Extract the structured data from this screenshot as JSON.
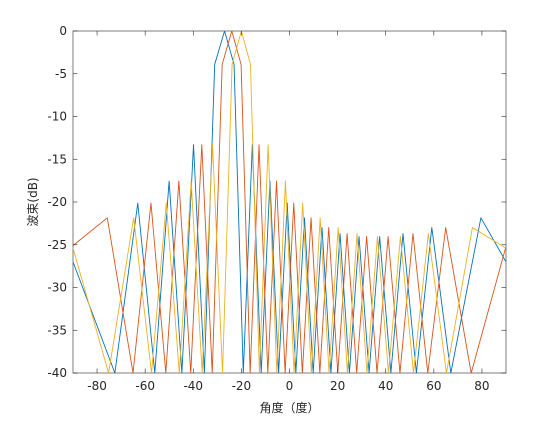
{
  "chart_data": {
    "type": "line",
    "xlabel": "角度（度）",
    "ylabel": "波束(dB)",
    "xlim": [
      -90,
      90
    ],
    "xticks": [
      -80,
      -60,
      -40,
      -20,
      0,
      20,
      40,
      60,
      80
    ],
    "ylim": [
      -40,
      0
    ],
    "yticks": [
      0,
      -5,
      -10,
      -15,
      -20,
      -25,
      -30,
      -35,
      -40
    ],
    "grid": false,
    "series": [
      {
        "color": "#0072BD",
        "x": [
          -90,
          -72.6,
          -63.07,
          -56,
          -50.04,
          -44.74,
          -39.9,
          -35.38,
          -31.1,
          -27,
          -23.05,
          -19.21,
          -15.46,
          -11.77,
          -8.13,
          -4.53,
          -0.95,
          2.64,
          6.23,
          9.85,
          13.5,
          17.22,
          21.01,
          24.9,
          28.91,
          33.1,
          37.48,
          42.14,
          47.18,
          52.75,
          59.15,
          67.07,
          79.57,
          90
        ],
        "values": [
          -27,
          -40,
          -20.13,
          -40,
          -17.55,
          -40,
          -13.3,
          -40,
          -3.9,
          0,
          -3.9,
          -40,
          -13.3,
          -40,
          -17.55,
          -40,
          -20.13,
          -40,
          -21.85,
          -40,
          -22.99,
          -40,
          -23.7,
          -40,
          -24.04,
          -40,
          -24.04,
          -40,
          -23.7,
          -40,
          -22.99,
          -40,
          -21.85,
          -27
        ]
      },
      {
        "color": "#D95319",
        "x": [
          -90,
          -75.74,
          -65.05,
          -57.58,
          -51.42,
          -45.99,
          -41.05,
          -36.46,
          -32.12,
          -27.98,
          -24,
          -20.13,
          -16.36,
          -12.66,
          -9.02,
          -5.41,
          -1.82,
          1.77,
          5.35,
          8.96,
          12.61,
          16.31,
          20.08,
          23.94,
          27.93,
          32.06,
          36.39,
          40.98,
          45.92,
          51.33,
          57.48,
          64.93,
          75.53,
          90
        ],
        "values": [
          -25.1,
          -21.85,
          -40,
          -20.13,
          -40,
          -17.55,
          -40,
          -13.3,
          -40,
          -3.9,
          0,
          -3.9,
          -40,
          -13.3,
          -40,
          -17.55,
          -40,
          -20.13,
          -40,
          -21.85,
          -40,
          -22.99,
          -40,
          -23.7,
          -40,
          -24.04,
          -40,
          -24.04,
          -40,
          -23.7,
          -40,
          -22.99,
          -40,
          -25.2
        ]
      },
      {
        "color": "#EDB120",
        "x": [
          -90,
          -75.2,
          -64.78,
          -57.36,
          -51.22,
          -45.81,
          -40.88,
          -36.3,
          -31.97,
          -27.84,
          -23.86,
          -20,
          -16.23,
          -12.53,
          -8.89,
          -5.28,
          -1.69,
          1.89,
          5.48,
          9.09,
          12.74,
          16.44,
          20.21,
          24.08,
          28.07,
          32.21,
          36.55,
          41.15,
          46.1,
          51.54,
          57.73,
          65.24,
          76.04,
          90
        ],
        "values": [
          -25.4,
          -40,
          -21.85,
          -40,
          -20.13,
          -40,
          -17.55,
          -40,
          -13.3,
          -40,
          -3.9,
          0,
          -3.9,
          -40,
          -13.3,
          -40,
          -17.55,
          -40,
          -20.13,
          -40,
          -21.85,
          -40,
          -22.99,
          -40,
          -23.7,
          -40,
          -24.04,
          -40,
          -24.04,
          -40,
          -23.7,
          -40,
          -22.99,
          -25.4
        ]
      }
    ]
  }
}
